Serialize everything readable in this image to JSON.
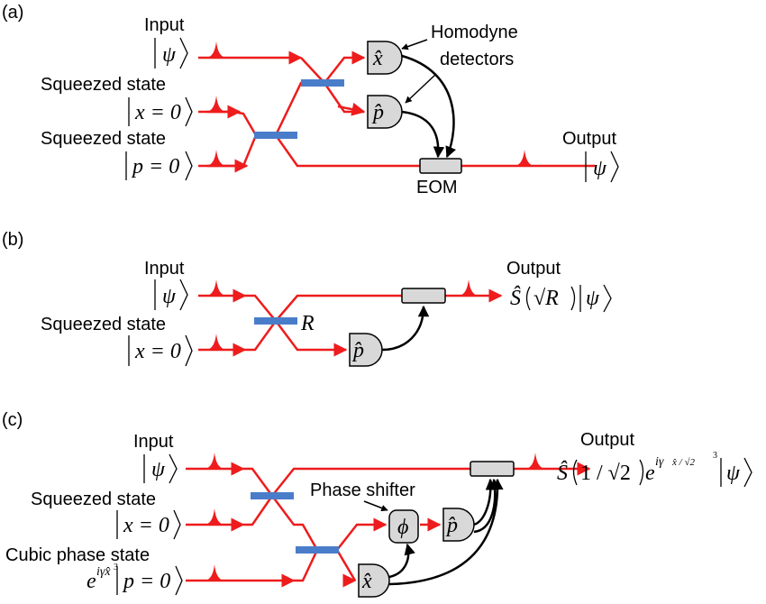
{
  "panels": {
    "a": {
      "tag": "(a)",
      "input_label": "Input",
      "input_state": "ψ",
      "squeezed1_label": "Squeezed state",
      "squeezed1_state": "x = 0",
      "squeezed2_label": "Squeezed state",
      "squeezed2_state": "p = 0",
      "homodyne_label_1": "Homodyne",
      "homodyne_label_2": "detectors",
      "det_x": "x̂",
      "det_p": "p̂",
      "eom_label": "EOM",
      "output_label": "Output",
      "output_state": "ψ"
    },
    "b": {
      "tag": "(b)",
      "input_label": "Input",
      "input_state": "ψ",
      "squeezed_label": "Squeezed state",
      "squeezed_state": "x = 0",
      "bs_label": "R",
      "det_p": "p̂",
      "output_label": "Output",
      "output_op": "Ŝ",
      "output_arg": "√R",
      "output_state": "ψ"
    },
    "c": {
      "tag": "(c)",
      "input_label": "Input",
      "input_state": "ψ",
      "squeezed_label": "Squeezed state",
      "squeezed_state": "x = 0",
      "cubic_label": "Cubic phase state",
      "cubic_prefix": "e",
      "cubic_exp": "iγx̂",
      "cubic_exp_power": "3",
      "cubic_state": "p = 0",
      "phase_shifter_label": "Phase shifter",
      "phi": "ϕ",
      "det_p": "p̂",
      "det_x": "x̂",
      "output_label": "Output",
      "output_op": "Ŝ",
      "output_arg": "1 / √2",
      "output_exp_prefix": "e",
      "output_exp": "iγ",
      "output_exp_inner": "x̂ / √2",
      "output_exp_power": "3",
      "output_state": "ψ"
    }
  },
  "colors": {
    "beam": "#ee1c1c",
    "beam_splitter": "#4a7dc9",
    "device_fill": "#d8d8d8"
  }
}
